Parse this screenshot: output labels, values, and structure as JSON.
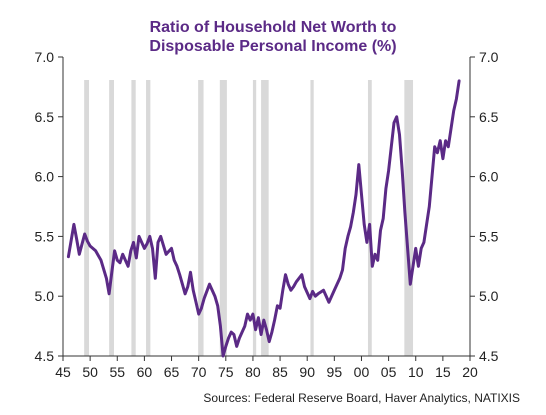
{
  "chart_data": {
    "type": "line",
    "title": "Ratio of Household Net Worth to",
    "subtitle": "Disposable Personal Income (%)",
    "xlabel": "",
    "ylabel": "",
    "source": "Sources:  Federal Reserve Board, Haver Analytics,  NATIXIS",
    "xlim": [
      45,
      20
    ],
    "ylim": [
      4.5,
      7.0
    ],
    "x_ticks": [
      "45",
      "50",
      "55",
      "60",
      "65",
      "70",
      "75",
      "80",
      "85",
      "90",
      "95",
      "00",
      "05",
      "10",
      "15",
      "20"
    ],
    "y_ticks_left": [
      "4.5",
      "5.0",
      "5.5",
      "6.0",
      "6.5",
      "7.0"
    ],
    "y_ticks_right": [
      "4.5",
      "5.0",
      "5.5",
      "6.0",
      "6.5",
      "7.0"
    ],
    "recession_bands": [
      [
        1948.9,
        1949.8
      ],
      [
        1953.5,
        1954.4
      ],
      [
        1957.6,
        1958.4
      ],
      [
        1960.3,
        1961.1
      ],
      [
        1969.9,
        1970.9
      ],
      [
        1973.9,
        1975.2
      ],
      [
        1980.0,
        1980.6
      ],
      [
        1981.5,
        1982.9
      ],
      [
        1990.6,
        1991.2
      ],
      [
        2001.2,
        2001.9
      ],
      [
        2007.9,
        2009.5
      ]
    ],
    "series": [
      {
        "color": "#5b2a86",
        "x": [
          1946.0,
          1947.0,
          1947.5,
          1948.0,
          1949.0,
          1949.5,
          1950.0,
          1951.0,
          1952.0,
          1953.0,
          1953.5,
          1954.0,
          1954.5,
          1955.0,
          1955.5,
          1956.0,
          1957.0,
          1957.5,
          1958.0,
          1958.5,
          1959.0,
          1960.0,
          1960.5,
          1961.0,
          1961.5,
          1962.0,
          1962.5,
          1963.0,
          1964.0,
          1965.0,
          1965.5,
          1966.0,
          1966.5,
          1967.0,
          1967.5,
          1968.0,
          1968.5,
          1969.0,
          1969.5,
          1970.0,
          1970.5,
          1971.0,
          1972.0,
          1972.5,
          1973.0,
          1973.5,
          1974.0,
          1974.5,
          1975.0,
          1975.5,
          1976.0,
          1976.5,
          1977.0,
          1977.5,
          1978.0,
          1978.5,
          1979.0,
          1979.5,
          1980.0,
          1980.5,
          1981.0,
          1981.5,
          1982.0,
          1982.5,
          1983.0,
          1983.5,
          1984.0,
          1984.5,
          1985.0,
          1985.5,
          1986.0,
          1986.5,
          1987.0,
          1987.5,
          1988.0,
          1989.0,
          1989.5,
          1990.0,
          1990.5,
          1991.0,
          1991.5,
          1992.0,
          1993.0,
          1994.0,
          1994.5,
          1995.0,
          1996.0,
          1996.5,
          1997.0,
          1997.5,
          1998.0,
          1998.5,
          1999.0,
          1999.5,
          2000.0,
          2000.5,
          2001.0,
          2001.5,
          2002.0,
          2002.5,
          2003.0,
          2003.5,
          2004.0,
          2004.5,
          2005.0,
          2005.5,
          2006.0,
          2006.5,
          2007.0,
          2007.5,
          2008.0,
          2008.5,
          2009.0,
          2009.5,
          2010.0,
          2010.5,
          2011.0,
          2011.5,
          2012.0,
          2012.5,
          2013.0,
          2013.5,
          2014.0,
          2014.5,
          2015.0,
          2015.5,
          2016.0,
          2016.5,
          2017.0,
          2017.5,
          2018.0
        ],
        "values": [
          5.33,
          5.6,
          5.48,
          5.35,
          5.52,
          5.46,
          5.42,
          5.38,
          5.3,
          5.15,
          5.02,
          5.2,
          5.38,
          5.3,
          5.28,
          5.35,
          5.25,
          5.38,
          5.45,
          5.32,
          5.5,
          5.4,
          5.44,
          5.5,
          5.4,
          5.15,
          5.45,
          5.5,
          5.35,
          5.4,
          5.3,
          5.25,
          5.18,
          5.1,
          5.02,
          5.08,
          5.2,
          5.05,
          4.95,
          4.85,
          4.9,
          4.98,
          5.1,
          5.05,
          5.0,
          4.92,
          4.75,
          4.5,
          4.58,
          4.65,
          4.7,
          4.68,
          4.58,
          4.65,
          4.7,
          4.75,
          4.85,
          4.8,
          4.85,
          4.72,
          4.82,
          4.68,
          4.8,
          4.72,
          4.62,
          4.7,
          4.8,
          4.92,
          4.9,
          5.05,
          5.18,
          5.1,
          5.05,
          5.08,
          5.12,
          5.18,
          5.08,
          5.03,
          4.98,
          5.04,
          5.0,
          5.02,
          5.05,
          4.95,
          5.0,
          5.05,
          5.15,
          5.22,
          5.4,
          5.5,
          5.58,
          5.7,
          5.85,
          6.1,
          5.85,
          5.6,
          5.45,
          5.6,
          5.25,
          5.35,
          5.3,
          5.55,
          5.65,
          5.9,
          6.05,
          6.25,
          6.45,
          6.5,
          6.35,
          6.05,
          5.7,
          5.4,
          5.1,
          5.25,
          5.4,
          5.25,
          5.4,
          5.45,
          5.6,
          5.75,
          6.0,
          6.25,
          6.2,
          6.3,
          6.15,
          6.3,
          6.25,
          6.4,
          6.55,
          6.65,
          6.8
        ]
      }
    ]
  }
}
